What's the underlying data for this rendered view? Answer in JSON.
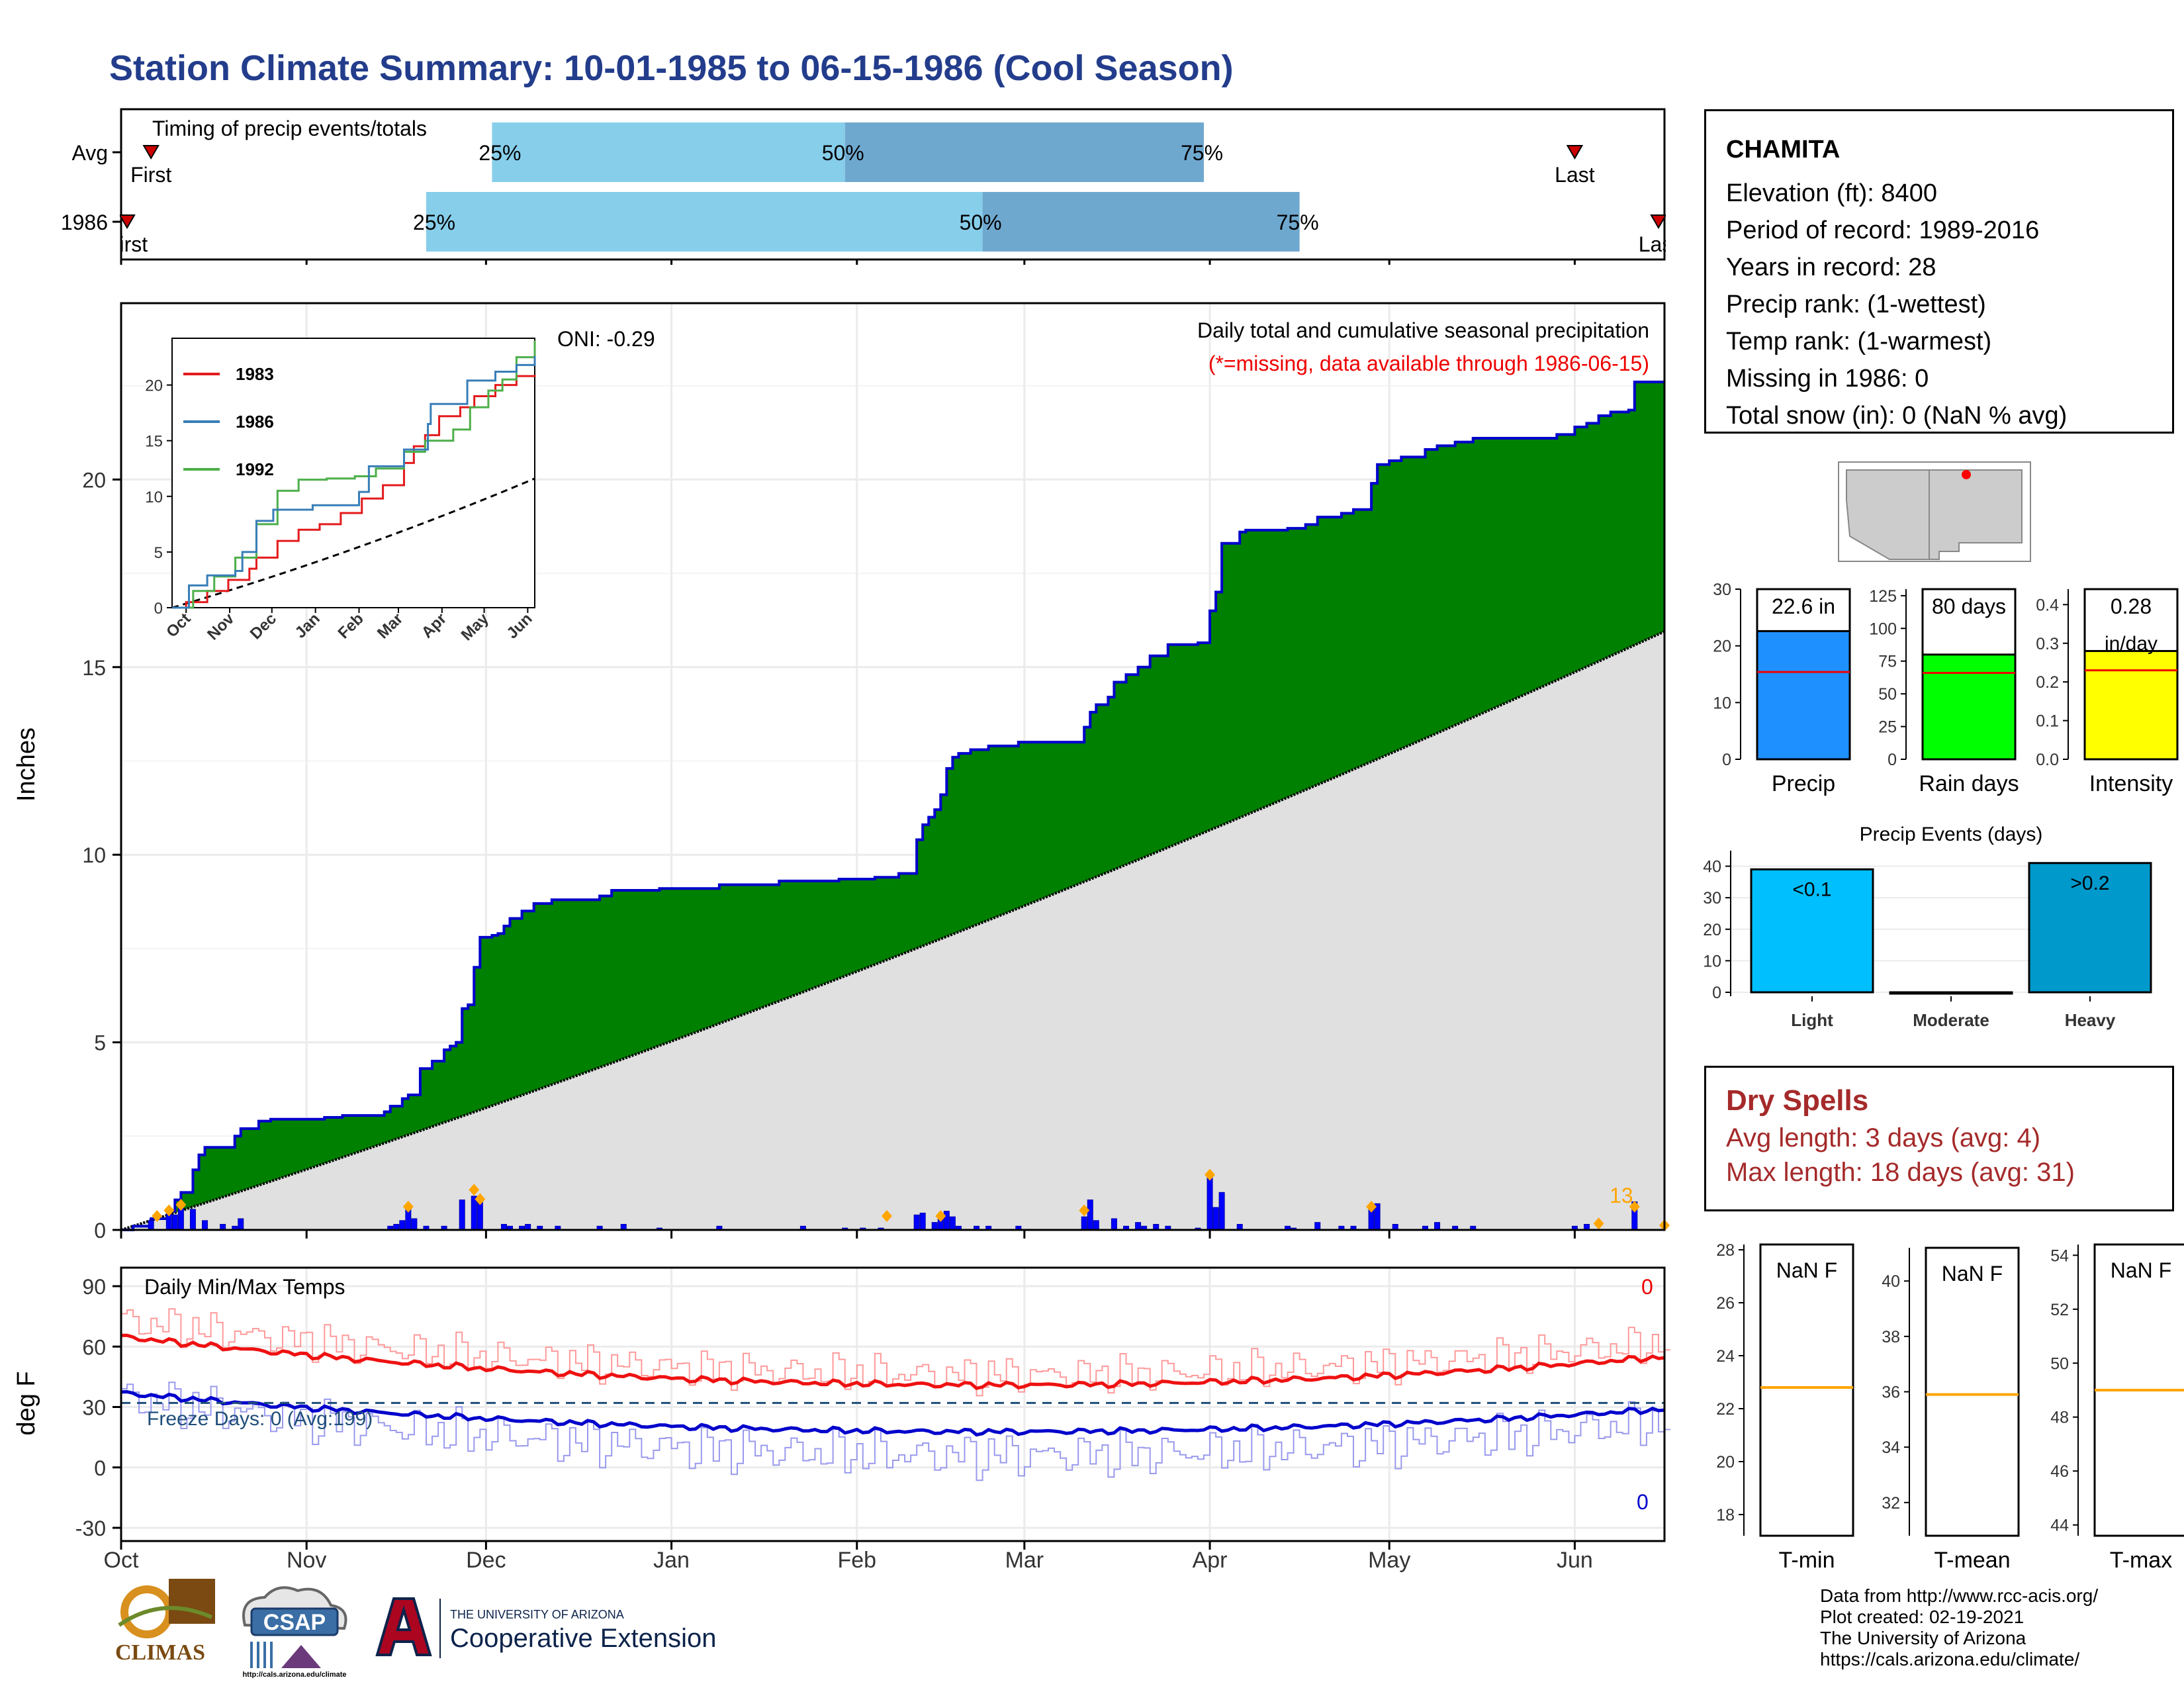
{
  "title": "Station Climate Summary: 10-01-1985 to 06-15-1986 (Cool Season)",
  "timing": {
    "title": "Timing of precip events/totals",
    "rows": [
      {
        "label": "Avg",
        "first_label": "First",
        "last_label": "Last",
        "p25_label": "25%",
        "p50_label": "50%",
        "p75_label": "75%",
        "first_day": 5,
        "p25_day": 62,
        "p50_day": 121,
        "p75_day": 181,
        "last_day": 243
      },
      {
        "label": "1986",
        "first_label": "First",
        "last_label": "Last",
        "p25_label": "25%",
        "p50_label": "50%",
        "p75_label": "75%",
        "first_day": 1,
        "p25_day": 51,
        "p50_day": 144,
        "p75_day": 197,
        "last_day": 257
      }
    ],
    "colors": {
      "p25_p50": "#87ceeb",
      "p50_p75": "#6fa8cf",
      "marker": "#cc0000"
    }
  },
  "precip": {
    "ylabel": "Inches",
    "oni_label": "ONI: -0.29",
    "subtitle": "Daily total and cumulative seasonal precipitation",
    "missing_note": "(*=missing, data available through 1986-06-15)",
    "count_label": "13",
    "colors": {
      "above_avg": "#008000",
      "avg_fill": "#e0e0e0",
      "cum_line": "#0000cc",
      "event_marker": "#ffa500"
    }
  },
  "inset": {
    "legend": [
      {
        "name": "1983",
        "color": "#e41a1c"
      },
      {
        "name": "1986",
        "color": "#377eb8"
      },
      {
        "name": "1992",
        "color": "#4daf4a"
      }
    ],
    "months": [
      "Oct",
      "Nov",
      "Dec",
      "Jan",
      "Feb",
      "Mar",
      "Apr",
      "May",
      "Jun"
    ],
    "yticks": [
      "0",
      "5",
      "10",
      "15",
      "20"
    ]
  },
  "temps": {
    "title": "Daily Min/Max Temps",
    "ylabel": "deg F",
    "freeze_label": "Freeze Days: 0 (Avg:199)",
    "max_count": "0",
    "min_count": "0",
    "yticks": [
      "90",
      "60",
      "30",
      "0",
      "-30"
    ],
    "colors": {
      "max": "#ee1111",
      "min": "#0000cc",
      "freeze": "#1f4e79"
    }
  },
  "months": [
    "Oct",
    "Nov",
    "Dec",
    "Jan",
    "Feb",
    "Mar",
    "Apr",
    "May",
    "Jun"
  ],
  "station": {
    "name": "CHAMITA",
    "elevation": "Elevation (ft): 8400",
    "period": "Period of record: 1989-2016",
    "years": "Years in record: 28",
    "precip_rank": "Precip rank:  (1-wettest)",
    "temp_rank": "Temp rank:  (1-warmest)",
    "missing": "Missing in 1986: 0",
    "snow": "Total snow (in): 0 (NaN % avg)"
  },
  "stat_bars": [
    {
      "label": "Precip",
      "value_label": "22.6 in",
      "unit_label": "",
      "value": 22.6,
      "avg": 15.4,
      "yticks": [
        "0",
        "10",
        "20",
        "30"
      ],
      "ymax": 30,
      "color": "#1e90ff"
    },
    {
      "label": "Rain days",
      "value_label": "80 days",
      "unit_label": "",
      "value": 80,
      "avg": 66,
      "yticks": [
        "0",
        "25",
        "50",
        "75",
        "100",
        "125"
      ],
      "ymax": 130,
      "color": "#00ff00"
    },
    {
      "label": "Intensity",
      "value_label": "0.28",
      "unit_label": "in/day",
      "value": 0.28,
      "avg": 0.23,
      "yticks": [
        "0.0",
        "0.1",
        "0.2",
        "0.3",
        "0.4"
      ],
      "ymax": 0.44,
      "color": "#ffff00"
    }
  ],
  "events": {
    "title": "Precip Events (days)",
    "yticks": [
      "0",
      "10",
      "20",
      "30",
      "40"
    ],
    "categories": [
      "Light",
      "Moderate",
      "Heavy"
    ],
    "bar_labels": [
      "<0.1",
      "",
      ">0.2"
    ],
    "values": [
      39,
      0,
      41
    ],
    "colors": [
      "#00bfff",
      "#00bfff",
      "#0099cc"
    ]
  },
  "dry_spells": {
    "title": "Dry Spells",
    "avg": "Avg length: 3 days (avg: 4)",
    "max": "Max length: 18 days (avg: 31)"
  },
  "temp_boxes": [
    {
      "label": "T-min",
      "value_label": "NaN F",
      "yticks": [
        "18",
        "20",
        "22",
        "24",
        "26",
        "28"
      ],
      "line": 22.8
    },
    {
      "label": "T-mean",
      "value_label": "NaN F",
      "yticks": [
        "32",
        "34",
        "36",
        "38",
        "40"
      ],
      "line": 35.9
    },
    {
      "label": "T-max",
      "value_label": "NaN F",
      "yticks": [
        "44",
        "46",
        "48",
        "50",
        "52",
        "54"
      ],
      "line": 49.0
    }
  ],
  "footer": {
    "credits": [
      "Data from http://www.rcc-acis.org/",
      "Plot created: 02-19-2021",
      "The University of Arizona",
      "https://cals.arizona.edu/climate/"
    ],
    "climas": "CLIMAS",
    "csap": "CSAP",
    "csap_url": "http://cals.arizona.edu/climate",
    "ua_small": "THE UNIVERSITY OF ARIZONA",
    "ua_large": "Cooperative Extension",
    "colors": {
      "climas": "#7a4a12",
      "ua_red": "#ab0520",
      "ua_navy": "#0c234b"
    }
  }
}
